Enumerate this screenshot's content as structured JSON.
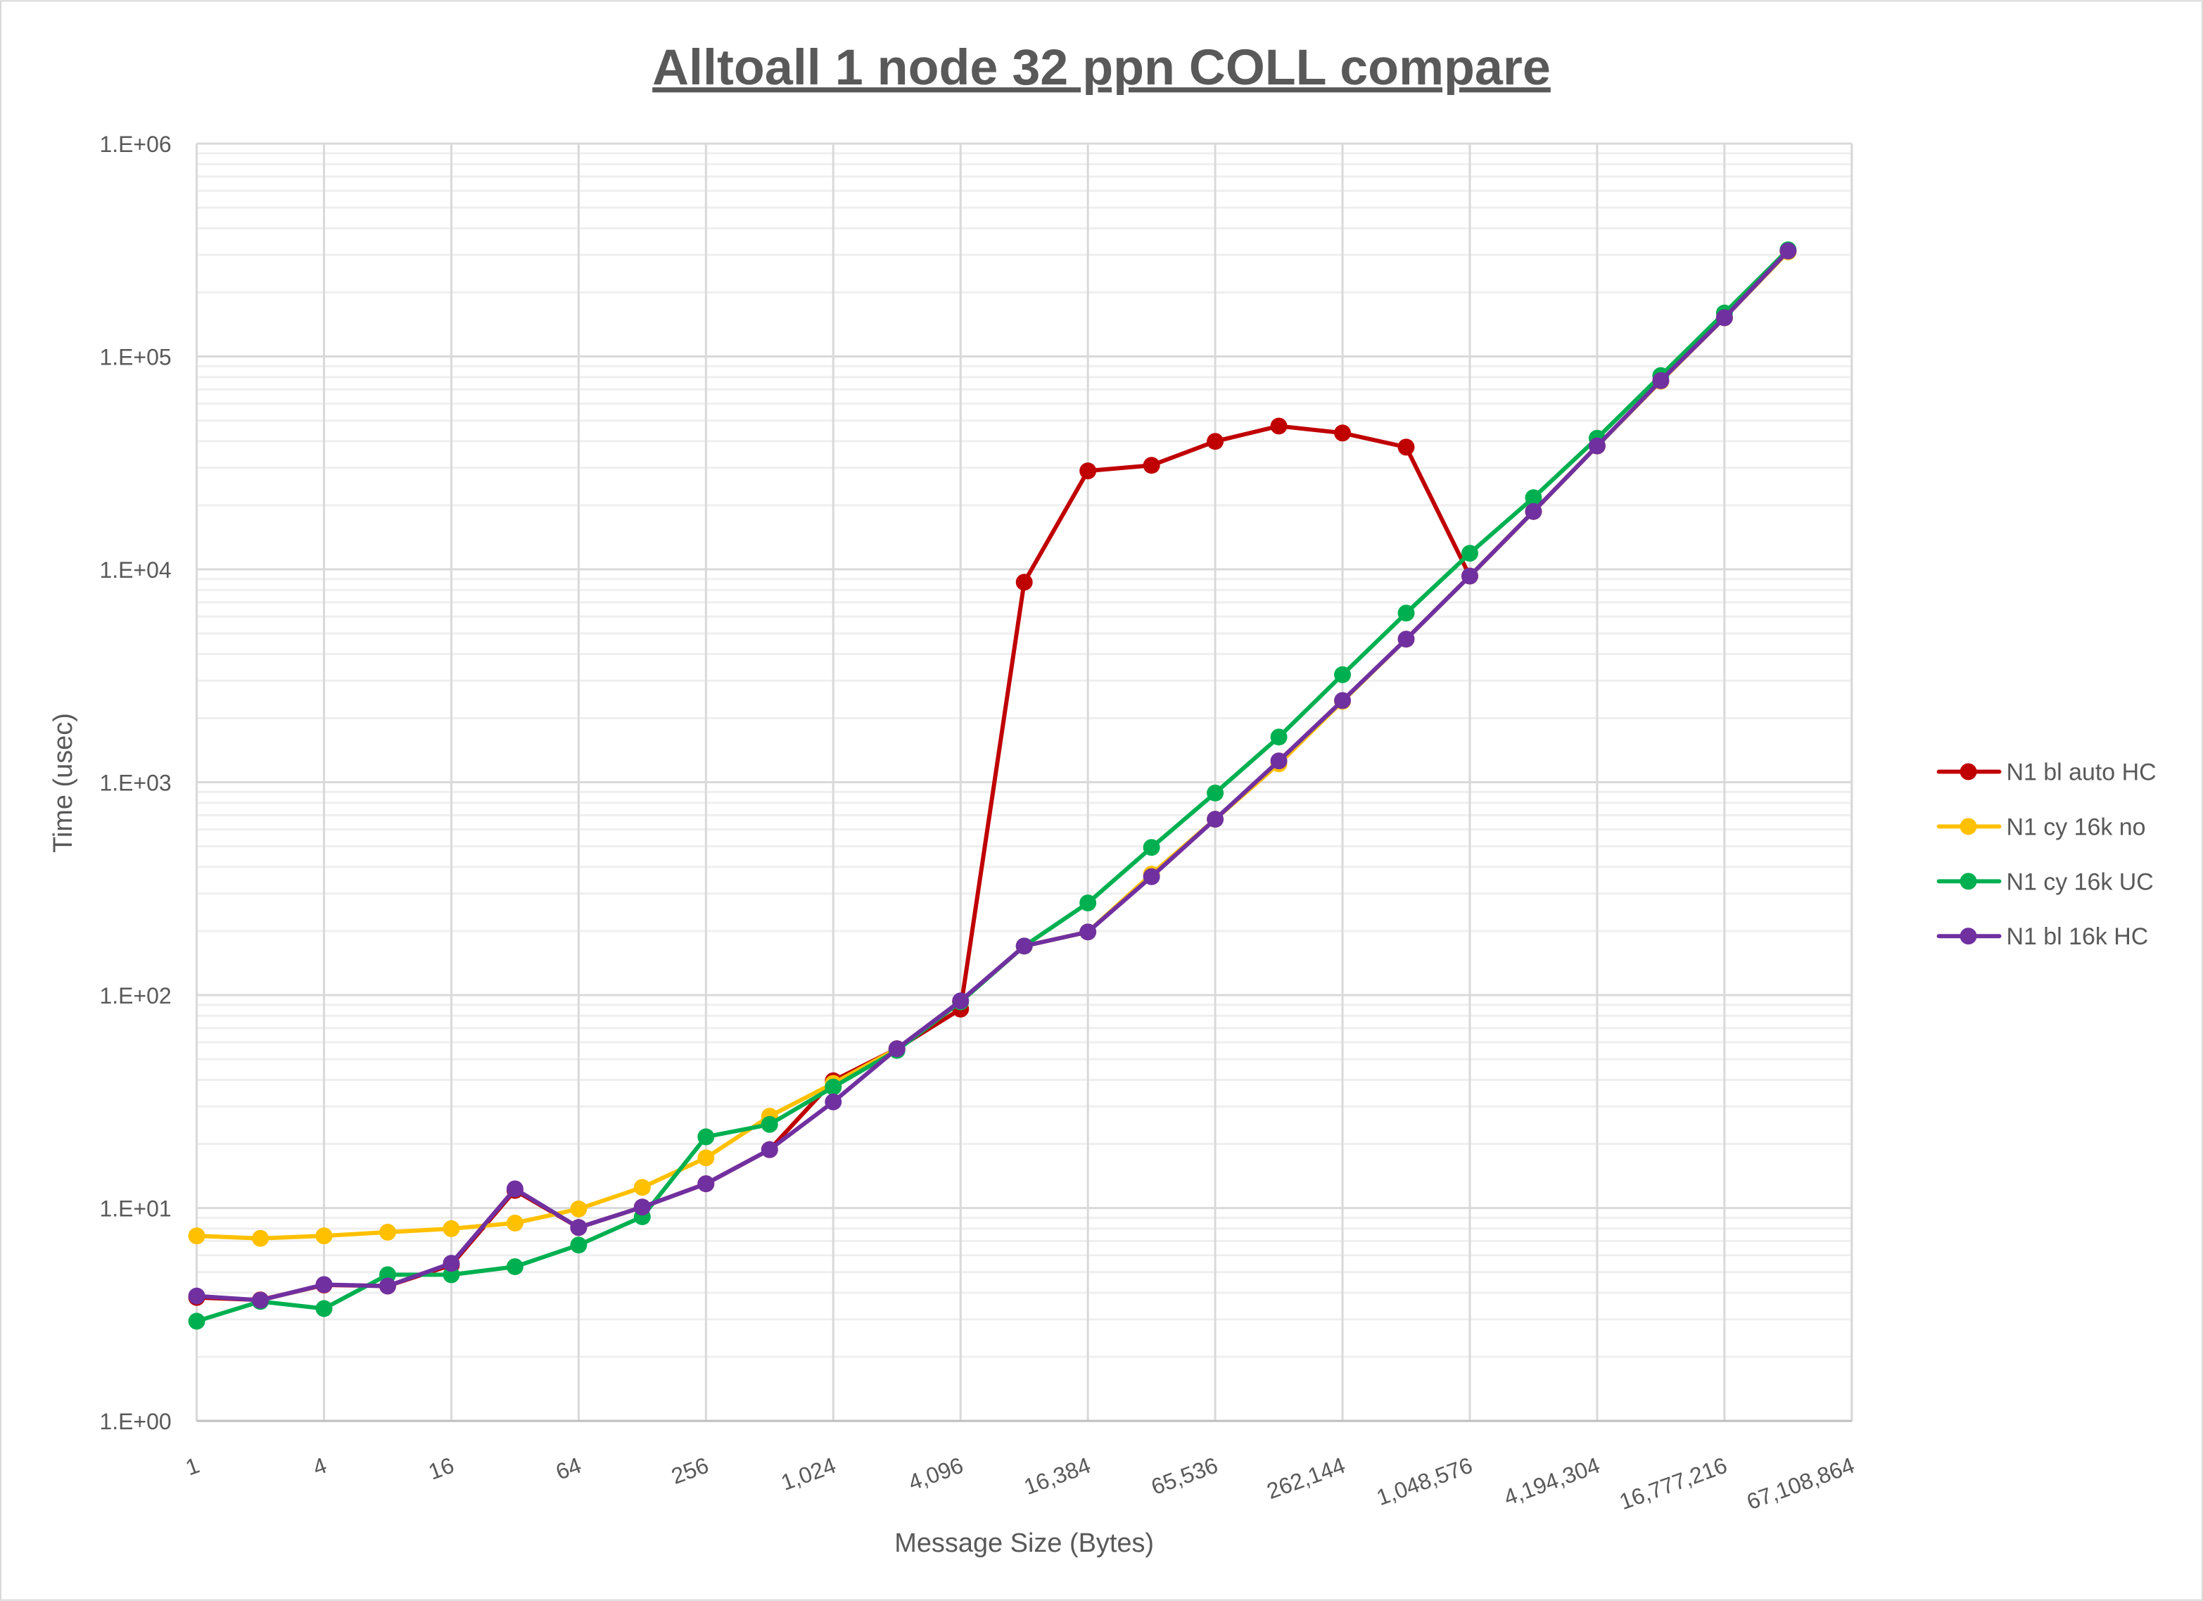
{
  "chart_data": {
    "type": "line",
    "title": "Alltoall 1 node 32 ppn COLL compare",
    "xlabel": "Message Size (Bytes)",
    "ylabel": "Time (usec)",
    "x_scale": "log2",
    "y_scale": "log10",
    "xlim": [
      1,
      67108864
    ],
    "ylim": [
      1,
      1000000
    ],
    "grid": true,
    "legend_position": "right",
    "x_tick_labels": [
      "1",
      "4",
      "16",
      "64",
      "256",
      "1,024",
      "4,096",
      "16,384",
      "65,536",
      "262,144",
      "1,048,576",
      "4,194,304",
      "16,777,216",
      "67,108,864"
    ],
    "y_tick_labels": [
      "1.E+00",
      "1.E+01",
      "1.E+02",
      "1.E+03",
      "1.E+04",
      "1.E+05",
      "1.E+06"
    ],
    "x": [
      1,
      2,
      4,
      8,
      16,
      32,
      64,
      128,
      256,
      512,
      1024,
      2048,
      4096,
      8192,
      16384,
      32768,
      65536,
      131072,
      262144,
      524288,
      1048576,
      2097152,
      4194304,
      8388608,
      16777216,
      33554432
    ],
    "series": [
      {
        "name": "N1 bl auto HC",
        "color": "#C00000",
        "values": [
          3.8,
          3.7,
          4.35,
          4.3,
          5.4,
          12.1,
          8.1,
          10.1,
          13.0,
          18.8,
          39.6,
          56,
          86,
          8700,
          29000,
          30800,
          39900,
          47100,
          43700,
          37500,
          9300,
          18700,
          38000,
          76600,
          152000,
          313000
        ]
      },
      {
        "name": "N1 cy 16k no",
        "color": "#FFC000",
        "values": [
          7.4,
          7.2,
          7.4,
          7.7,
          8.0,
          8.5,
          9.9,
          12.5,
          17.2,
          27,
          38.5,
          56,
          93,
          170,
          198,
          370,
          670,
          1220,
          2400,
          4700,
          9300,
          18700,
          38000,
          76600,
          152000,
          310000
        ]
      },
      {
        "name": "N1 cy 16k UC",
        "color": "#00B050",
        "values": [
          2.94,
          3.64,
          3.37,
          4.86,
          4.86,
          5.3,
          6.7,
          9.1,
          21.6,
          24.7,
          37,
          55,
          93,
          170,
          271,
          494,
          890,
          1630,
          3200,
          6230,
          11900,
          21700,
          41300,
          81300,
          160000,
          317000
        ]
      },
      {
        "name": "N1 bl 16k HC",
        "color": "#7030A0",
        "values": [
          3.86,
          3.69,
          4.37,
          4.3,
          5.5,
          12.3,
          8.1,
          10.1,
          13.0,
          18.8,
          31.5,
          56,
          94,
          170,
          198,
          360,
          670,
          1260,
          2420,
          4700,
          9300,
          18700,
          38000,
          77000,
          152000,
          313000
        ]
      }
    ]
  }
}
